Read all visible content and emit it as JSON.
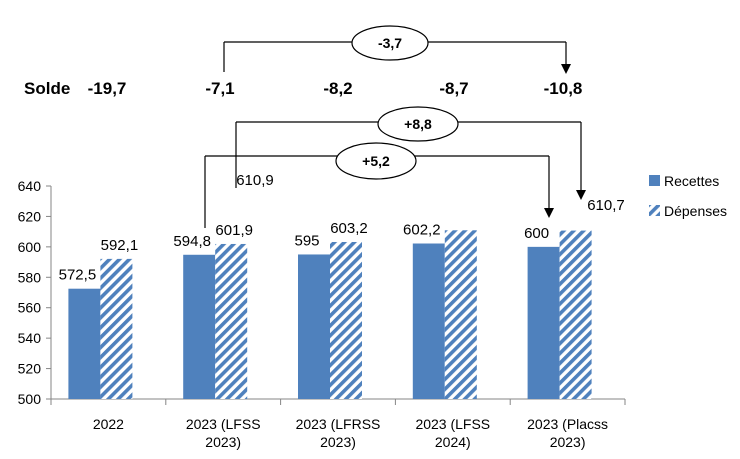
{
  "chart_data": {
    "type": "bar",
    "categories": [
      [
        "2022"
      ],
      [
        "2023 (LFSS",
        "2023)"
      ],
      [
        "2023 (LFRSS",
        "2023)"
      ],
      [
        "2023 (LFSS",
        "2024)"
      ],
      [
        "2023 (Placss",
        "2023)"
      ]
    ],
    "series": [
      {
        "name": "Recettes",
        "values": [
          572.5,
          594.8,
          595,
          602.2,
          600
        ],
        "labels": [
          "572,5",
          "594,8",
          "595",
          "602,2",
          "600"
        ],
        "color": "#4f81bd",
        "pattern": "solid"
      },
      {
        "name": "Dépenses",
        "values": [
          592.1,
          601.9,
          603.2,
          610.9,
          610.7
        ],
        "labels": [
          "592,1",
          "601,9",
          "603,2",
          "610,9",
          "610,7"
        ],
        "color": "#4f81bd",
        "pattern": "diagonal-stripes"
      }
    ],
    "ylim": [
      500,
      640
    ],
    "yticks": [
      500,
      520,
      540,
      560,
      580,
      600,
      620,
      640
    ],
    "grid": false,
    "legend": "right",
    "solde": {
      "label": "Solde",
      "values": [
        "-19,7",
        "-7,1",
        "-8,2",
        "-8,7",
        "-10,8"
      ]
    },
    "annotations": [
      {
        "text": "-3,7",
        "from_category": 1,
        "to_category": 4,
        "target": "solde"
      },
      {
        "text": "+8,8",
        "from_category": 1,
        "to_category": 4,
        "series": "Dépenses"
      },
      {
        "text": "+5,2",
        "from_category": 1,
        "to_category": 4,
        "series": "Recettes"
      }
    ]
  }
}
